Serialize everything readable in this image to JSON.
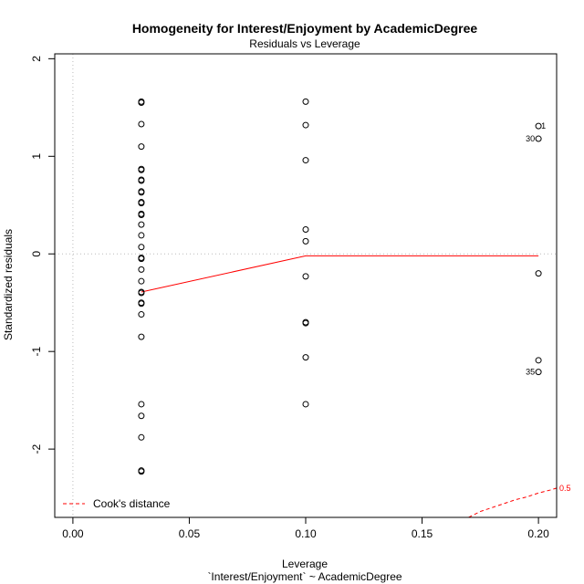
{
  "chart_data": {
    "type": "scatter",
    "title": "Homogeneity for Interest/Enjoyment by AcademicDegree",
    "subtitle": "Residuals vs Leverage",
    "xlabel": "Leverage",
    "xlabel2": "`Interest/Enjoyment` ~ AcademicDegree",
    "ylabel": "Standardized residuals",
    "xlim": [
      -0.0078,
      0.2078
    ],
    "ylim": [
      -2.7,
      2.05
    ],
    "x_ticks": [
      0.0,
      0.05,
      0.1,
      0.15,
      0.2
    ],
    "x_tick_labels": [
      "0.00",
      "0.05",
      "0.10",
      "0.15",
      "0.20"
    ],
    "y_ticks": [
      -2,
      -1,
      0,
      1,
      2
    ],
    "y_tick_labels": [
      "-2",
      "-1",
      "0",
      "1",
      "2"
    ],
    "points": [
      {
        "x": 0.0294,
        "y": 1.56
      },
      {
        "x": 0.0294,
        "y": 1.55
      },
      {
        "x": 0.0294,
        "y": 1.33
      },
      {
        "x": 0.0294,
        "y": 1.1
      },
      {
        "x": 0.0294,
        "y": 0.87
      },
      {
        "x": 0.0294,
        "y": 0.86
      },
      {
        "x": 0.0294,
        "y": 0.76
      },
      {
        "x": 0.0294,
        "y": 0.75
      },
      {
        "x": 0.0294,
        "y": 0.64
      },
      {
        "x": 0.0294,
        "y": 0.63
      },
      {
        "x": 0.0294,
        "y": 0.53
      },
      {
        "x": 0.0294,
        "y": 0.52
      },
      {
        "x": 0.0294,
        "y": 0.41
      },
      {
        "x": 0.0294,
        "y": 0.4
      },
      {
        "x": 0.0294,
        "y": 0.3
      },
      {
        "x": 0.0294,
        "y": 0.19
      },
      {
        "x": 0.0294,
        "y": 0.07
      },
      {
        "x": 0.0294,
        "y": -0.04
      },
      {
        "x": 0.0294,
        "y": -0.05
      },
      {
        "x": 0.0294,
        "y": -0.16
      },
      {
        "x": 0.0294,
        "y": -0.28
      },
      {
        "x": 0.0294,
        "y": -0.39
      },
      {
        "x": 0.0294,
        "y": -0.4
      },
      {
        "x": 0.0294,
        "y": -0.5
      },
      {
        "x": 0.0294,
        "y": -0.51
      },
      {
        "x": 0.0294,
        "y": -0.62
      },
      {
        "x": 0.0294,
        "y": -0.85
      },
      {
        "x": 0.0294,
        "y": -1.54
      },
      {
        "x": 0.0294,
        "y": -1.66
      },
      {
        "x": 0.0294,
        "y": -1.88
      },
      {
        "x": 0.0294,
        "y": -2.22
      },
      {
        "x": 0.0294,
        "y": -2.23
      },
      {
        "x": 0.1,
        "y": 1.56
      },
      {
        "x": 0.1,
        "y": 1.32
      },
      {
        "x": 0.1,
        "y": 0.96
      },
      {
        "x": 0.1,
        "y": 0.25
      },
      {
        "x": 0.1,
        "y": 0.13
      },
      {
        "x": 0.1,
        "y": -0.23
      },
      {
        "x": 0.1,
        "y": -0.7
      },
      {
        "x": 0.1,
        "y": -0.71
      },
      {
        "x": 0.1,
        "y": -1.06
      },
      {
        "x": 0.1,
        "y": -1.54
      },
      {
        "x": 0.2,
        "y": 1.31
      },
      {
        "x": 0.2,
        "y": 1.18
      },
      {
        "x": 0.2,
        "y": -0.2
      },
      {
        "x": 0.2,
        "y": -1.09
      },
      {
        "x": 0.2,
        "y": -1.21
      }
    ],
    "point_labels": [
      {
        "x": 0.2,
        "y": 1.31,
        "text": "1",
        "side": "right"
      },
      {
        "x": 0.2,
        "y": 1.18,
        "text": "30",
        "side": "left"
      },
      {
        "x": 0.2,
        "y": -1.21,
        "text": "35",
        "side": "left"
      }
    ],
    "smooth_line": {
      "x": [
        0.0294,
        0.1,
        0.2
      ],
      "y": [
        -0.39,
        -0.02,
        -0.02
      ]
    },
    "cooks_curve": {
      "level": 0.5,
      "label": "0.5",
      "x": [
        0.17,
        0.175,
        0.18,
        0.185,
        0.19,
        0.195,
        0.2,
        0.205,
        0.2078
      ],
      "y": [
        -2.7,
        -2.64,
        -2.6,
        -2.56,
        -2.52,
        -2.49,
        -2.45,
        -2.42,
        -2.4
      ]
    },
    "reference_lines": {
      "h": 0,
      "v": 0
    },
    "legend": {
      "position": "bottom-left",
      "entries": [
        {
          "label": "Cook's distance",
          "style": "dashed",
          "color": "#ff0000"
        }
      ]
    },
    "colors": {
      "points": "#000000",
      "smooth": "#ff0000",
      "cooks": "#ff0000",
      "reference": "#bbbbbb",
      "frame": "#000000"
    }
  }
}
